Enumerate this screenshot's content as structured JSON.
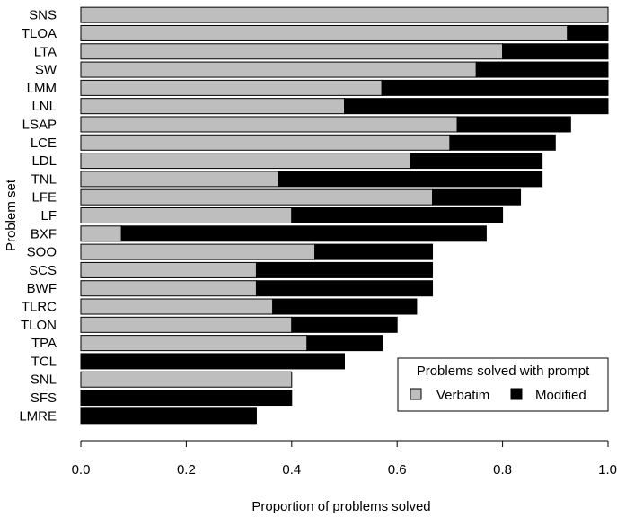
{
  "chart_data": {
    "type": "bar",
    "orientation": "horizontal",
    "stacked": true,
    "xlabel": "Proportion of problems solved",
    "ylabel": "Problem set",
    "xlim": [
      0,
      1
    ],
    "xticks": [
      "0.0",
      "0.2",
      "0.4",
      "0.6",
      "0.8",
      "1.0"
    ],
    "grid": false,
    "legend_position": "bottom-right",
    "legend_title": "Problems solved with prompt",
    "categories": [
      "SNS",
      "TLOA",
      "LTA",
      "SW",
      "LMM",
      "LNL",
      "LSAP",
      "LCE",
      "LDL",
      "TNL",
      "LFE",
      "LF",
      "BXF",
      "SOO",
      "SCS",
      "BWF",
      "TLRC",
      "TLON",
      "TPA",
      "TCL",
      "SNL",
      "SFS",
      "LMRE"
    ],
    "series": [
      {
        "name": "Verbatim",
        "color": "#bebebe",
        "values": [
          1.0,
          0.923,
          0.8,
          0.75,
          0.571,
          0.5,
          0.714,
          0.7,
          0.625,
          0.375,
          0.667,
          0.4,
          0.077,
          0.444,
          0.333,
          0.333,
          0.364,
          0.4,
          0.429,
          0.0,
          0.4,
          0.0,
          0.0
        ]
      },
      {
        "name": "Modified",
        "color": "#000000",
        "values": [
          0.0,
          0.077,
          0.2,
          0.25,
          0.429,
          0.5,
          0.215,
          0.2,
          0.25,
          0.5,
          0.167,
          0.4,
          0.692,
          0.223,
          0.334,
          0.334,
          0.273,
          0.2,
          0.143,
          0.5,
          0.0,
          0.4,
          0.333
        ]
      }
    ]
  }
}
